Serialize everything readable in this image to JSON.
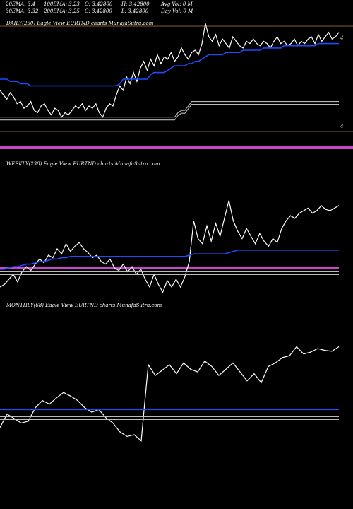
{
  "header": {
    "row1": [
      "20EMA: 3.4",
      "100EMA: 3.23",
      "O: 3.42800",
      "H: 3.42800",
      "Avg Vol: 0  M"
    ],
    "row2": [
      "30EMA: 3.32",
      "200EMA: 3.25",
      "C: 3.42800",
      "L: 3.42800",
      "Day Vol: 0  M"
    ]
  },
  "colors": {
    "price": "#ffffff",
    "ema": "#1e4bff",
    "avg": "#bbbbbb",
    "volume": "#cc44cc",
    "divider": "#8b5a2b"
  },
  "chart_data": [
    {
      "type": "line",
      "label": "DAILY(250) Eagle   View  EURTND charts MunafaSutra.com",
      "axis_marker": "4",
      "series": [
        {
          "name": "",
          "values": [
            3.22,
            3.2,
            3.18,
            3.21,
            3.19,
            3.16,
            3.17,
            3.14,
            3.15,
            3.17,
            3.13,
            3.12,
            3.15,
            3.16,
            3.13,
            3.11,
            3.14,
            3.13,
            3.1,
            3.12,
            3.11,
            3.13,
            3.15,
            3.14,
            3.16,
            3.13,
            3.15,
            3.14,
            3.16,
            3.12,
            3.1,
            3.14,
            3.16,
            3.15,
            3.2,
            3.24,
            3.22,
            3.28,
            3.25,
            3.3,
            3.26,
            3.32,
            3.35,
            3.31,
            3.36,
            3.33,
            3.38,
            3.34,
            3.37,
            3.36,
            3.39,
            3.35,
            3.37,
            3.41,
            3.38,
            3.36,
            3.39,
            3.4,
            3.38,
            3.43,
            3.52,
            3.46,
            3.44,
            3.47,
            3.42,
            3.45,
            3.43,
            3.41,
            3.46,
            3.44,
            3.42,
            3.41,
            3.44,
            3.43,
            3.45,
            3.43,
            3.42,
            3.44,
            3.43,
            3.41,
            3.44,
            3.46,
            3.43,
            3.44,
            3.42,
            3.43,
            3.45,
            3.42,
            3.44,
            3.43,
            3.45,
            3.46,
            3.43,
            3.47,
            3.44,
            3.46,
            3.48,
            3.45,
            3.46,
            3.48
          ]
        },
        {
          "name": "",
          "values": [
            3.27,
            3.27,
            3.27,
            3.26,
            3.26,
            3.26,
            3.25,
            3.25,
            3.25,
            3.24,
            3.24,
            3.24,
            3.24,
            3.24,
            3.24,
            3.24,
            3.24,
            3.24,
            3.24,
            3.24,
            3.24,
            3.24,
            3.24,
            3.24,
            3.24,
            3.24,
            3.24,
            3.24,
            3.24,
            3.24,
            3.24,
            3.24,
            3.24,
            3.24,
            3.24,
            3.25,
            3.27,
            3.27,
            3.27,
            3.27,
            3.27,
            3.27,
            3.27,
            3.27,
            3.29,
            3.3,
            3.3,
            3.3,
            3.3,
            3.31,
            3.32,
            3.33,
            3.33,
            3.33,
            3.33,
            3.34,
            3.34,
            3.35,
            3.35,
            3.36,
            3.37,
            3.38,
            3.38,
            3.38,
            3.38,
            3.38,
            3.39,
            3.39,
            3.39,
            3.39,
            3.39,
            3.4,
            3.4,
            3.4,
            3.4,
            3.4,
            3.4,
            3.41,
            3.41,
            3.41,
            3.41,
            3.41,
            3.41,
            3.42,
            3.42,
            3.42,
            3.42,
            3.42,
            3.42,
            3.42,
            3.42,
            3.42,
            3.42,
            3.43,
            3.43,
            3.43,
            3.43,
            3.43,
            3.43,
            3.43
          ]
        },
        {
          "name": "",
          "values": [
            3.1,
            3.1,
            3.1,
            3.1,
            3.1,
            3.1,
            3.1,
            3.1,
            3.1,
            3.1,
            3.1,
            3.1,
            3.1,
            3.1,
            3.1,
            3.1,
            3.1,
            3.1,
            3.1,
            3.1,
            3.1,
            3.1,
            3.1,
            3.1,
            3.1,
            3.1,
            3.1,
            3.1,
            3.1,
            3.1,
            3.1,
            3.1,
            3.1,
            3.1,
            3.1,
            3.1,
            3.1,
            3.1,
            3.1,
            3.1,
            3.1,
            3.1,
            3.1,
            3.1,
            3.1,
            3.1,
            3.1,
            3.1,
            3.1,
            3.1,
            3.1,
            3.1,
            3.12,
            3.13,
            3.13,
            3.15,
            3.17,
            3.17,
            3.17,
            3.17,
            3.17,
            3.17,
            3.17,
            3.17,
            3.17,
            3.17,
            3.17,
            3.17,
            3.17,
            3.17,
            3.17,
            3.17,
            3.17,
            3.17,
            3.17,
            3.17,
            3.17,
            3.17,
            3.17,
            3.17,
            3.17,
            3.17,
            3.17,
            3.17,
            3.17,
            3.17,
            3.17,
            3.17,
            3.17,
            3.17,
            3.17,
            3.17,
            3.17,
            3.17,
            3.17,
            3.17,
            3.17,
            3.17,
            3.17,
            3.17
          ]
        }
      ]
    },
    {
      "type": "line",
      "label": "WEEKLY(238) Eagle   View  EURTND charts MunafaSutra.com",
      "series": [
        {
          "name": "",
          "values": [
            2.6,
            2.62,
            2.66,
            2.7,
            2.64,
            2.72,
            2.76,
            2.73,
            2.78,
            2.82,
            2.79,
            2.85,
            2.83,
            2.9,
            2.86,
            2.94,
            2.88,
            2.92,
            2.95,
            2.9,
            2.87,
            2.83,
            2.85,
            2.8,
            2.78,
            2.82,
            2.75,
            2.73,
            2.78,
            2.72,
            2.76,
            2.7,
            2.74,
            2.66,
            2.6,
            2.7,
            2.62,
            2.56,
            2.65,
            2.6,
            2.66,
            2.6,
            2.68,
            2.8,
            3.12,
            2.98,
            2.94,
            3.08,
            2.96,
            3.1,
            3.0,
            3.14,
            3.28,
            3.12,
            3.04,
            2.98,
            3.06,
            3.0,
            2.94,
            3.02,
            2.96,
            2.92,
            2.98,
            2.95,
            3.06,
            3.12,
            3.16,
            3.14,
            3.18,
            3.2,
            3.22,
            3.18,
            3.2,
            3.24,
            3.21,
            3.2,
            3.22,
            3.24
          ]
        },
        {
          "name": "",
          "values": [
            2.74,
            2.74,
            2.75,
            2.76,
            2.76,
            2.77,
            2.78,
            2.78,
            2.79,
            2.8,
            2.8,
            2.81,
            2.82,
            2.82,
            2.83,
            2.83,
            2.84,
            2.84,
            2.84,
            2.84,
            2.84,
            2.84,
            2.84,
            2.84,
            2.84,
            2.84,
            2.84,
            2.84,
            2.84,
            2.84,
            2.84,
            2.84,
            2.84,
            2.84,
            2.84,
            2.84,
            2.84,
            2.84,
            2.84,
            2.84,
            2.84,
            2.84,
            2.84,
            2.85,
            2.86,
            2.86,
            2.86,
            2.86,
            2.86,
            2.86,
            2.86,
            2.86,
            2.87,
            2.88,
            2.89,
            2.89,
            2.89,
            2.89,
            2.89,
            2.89,
            2.89,
            2.89,
            2.89,
            2.89,
            2.89,
            2.89,
            2.89,
            2.89,
            2.89,
            2.89,
            2.89,
            2.89,
            2.89,
            2.89,
            2.89,
            2.89,
            2.89,
            2.89
          ]
        },
        {
          "name": "",
          "values": [
            2.72,
            2.72,
            2.72,
            2.72,
            2.72,
            2.72,
            2.72,
            2.72,
            2.72,
            2.72,
            2.72,
            2.72,
            2.72,
            2.72,
            2.72,
            2.72,
            2.72,
            2.72,
            2.72,
            2.72,
            2.72,
            2.72,
            2.72,
            2.72,
            2.72,
            2.72,
            2.72,
            2.72,
            2.72,
            2.72,
            2.72,
            2.72,
            2.72,
            2.72,
            2.72,
            2.72,
            2.72,
            2.72,
            2.72,
            2.72,
            2.72,
            2.72,
            2.72,
            2.72,
            2.72,
            2.72,
            2.72,
            2.72,
            2.72,
            2.72,
            2.72,
            2.72,
            2.72,
            2.72,
            2.72,
            2.72,
            2.72,
            2.72,
            2.72,
            2.72,
            2.72,
            2.72,
            2.72,
            2.72,
            2.72,
            2.72,
            2.72,
            2.72,
            2.72,
            2.72,
            2.72,
            2.72,
            2.72,
            2.72,
            2.72,
            2.72,
            2.72,
            2.72
          ]
        }
      ]
    },
    {
      "type": "line",
      "label": "MONTHLY(68) Eagle   View  EURTND charts MunafaSutra.com",
      "series": [
        {
          "name": "",
          "values": [
            2.4,
            2.55,
            2.5,
            2.45,
            2.47,
            2.62,
            2.7,
            2.66,
            2.73,
            2.79,
            2.75,
            2.7,
            2.62,
            2.57,
            2.6,
            2.51,
            2.45,
            2.35,
            2.3,
            2.32,
            2.25,
            3.1,
            2.98,
            3.04,
            3.1,
            3.0,
            3.12,
            3.05,
            3.02,
            3.14,
            3.08,
            2.98,
            3.05,
            3.12,
            3.02,
            2.92,
            3.0,
            2.9,
            3.08,
            3.12,
            3.18,
            3.2,
            3.3,
            3.22,
            3.24,
            3.28,
            3.26,
            3.25,
            3.3
          ]
        },
        {
          "name": "",
          "values": [
            2.6,
            2.6,
            2.6,
            2.6,
            2.6,
            2.6,
            2.6,
            2.6,
            2.6,
            2.6,
            2.6,
            2.6,
            2.6,
            2.6,
            2.6,
            2.6,
            2.6,
            2.6,
            2.6,
            2.6,
            2.6,
            2.6,
            2.6,
            2.6,
            2.6,
            2.6,
            2.6,
            2.6,
            2.6,
            2.6,
            2.6,
            2.6,
            2.6,
            2.6,
            2.6,
            2.6,
            2.6,
            2.6,
            2.6,
            2.6,
            2.6,
            2.6,
            2.6,
            2.6,
            2.6,
            2.6,
            2.6,
            2.6,
            2.6
          ]
        },
        {
          "name": "",
          "values": [
            2.52,
            2.52,
            2.52,
            2.52,
            2.52,
            2.52,
            2.52,
            2.52,
            2.52,
            2.52,
            2.52,
            2.52,
            2.52,
            2.52,
            2.52,
            2.52,
            2.52,
            2.52,
            2.52,
            2.52,
            2.52,
            2.52,
            2.52,
            2.52,
            2.52,
            2.52,
            2.52,
            2.52,
            2.52,
            2.52,
            2.52,
            2.52,
            2.52,
            2.52,
            2.52,
            2.52,
            2.52,
            2.52,
            2.52,
            2.52,
            2.52,
            2.52,
            2.52,
            2.52,
            2.52,
            2.52,
            2.52,
            2.52,
            2.52
          ]
        }
      ]
    }
  ]
}
